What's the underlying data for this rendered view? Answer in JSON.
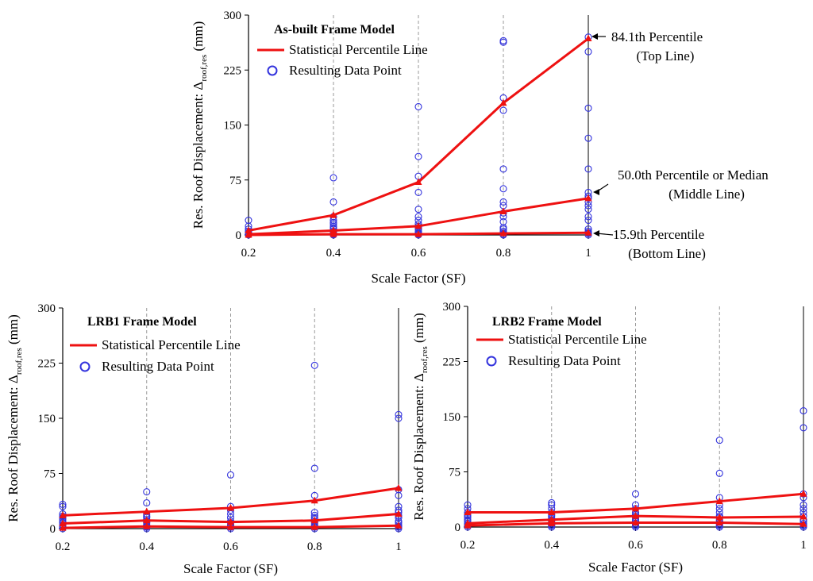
{
  "chart_data": [
    {
      "type": "scatter",
      "id": "asbuilt",
      "title": "As-built Frame Model",
      "xlabel": "Scale Factor (SF)",
      "ylabel": "Res. Roof Displacement: Δ",
      "ylabel_sub": "roof,res",
      "ylabel_unit": " (mm)",
      "xlim": [
        0.2,
        1.0
      ],
      "ylim": [
        0,
        300
      ],
      "xticks": [
        0.2,
        0.4,
        0.6,
        0.8,
        1.0
      ],
      "xtick_labels": [
        "0.2",
        "0.4",
        "0.6",
        "0.8",
        "1"
      ],
      "yticks": [
        0,
        75,
        150,
        225,
        300
      ],
      "ytick_labels": [
        "0",
        "75",
        "150",
        "225",
        "300"
      ],
      "legend": [
        "Statistical Percentile Line",
        "Resulting Data Point"
      ],
      "percentile_lines": [
        {
          "name": "84.1th Percentile",
          "x": [
            0.2,
            0.4,
            0.6,
            0.8,
            1.0
          ],
          "y": [
            6,
            27,
            72,
            180,
            268
          ]
        },
        {
          "name": "50.0th Percentile",
          "x": [
            0.2,
            0.4,
            0.6,
            0.8,
            1.0
          ],
          "y": [
            1,
            6,
            12,
            32,
            50
          ]
        },
        {
          "name": "15.9th Percentile",
          "x": [
            0.2,
            0.4,
            0.6,
            0.8,
            1.0
          ],
          "y": [
            0,
            1,
            1,
            2,
            3
          ]
        }
      ],
      "points": [
        {
          "x": 0.2,
          "y": [
            0,
            1,
            2,
            3,
            5,
            8,
            12,
            20
          ]
        },
        {
          "x": 0.4,
          "y": [
            0,
            1,
            2,
            3,
            5,
            8,
            10,
            12,
            15,
            17,
            20,
            25,
            45,
            78
          ]
        },
        {
          "x": 0.6,
          "y": [
            0,
            1,
            2,
            3,
            5,
            8,
            10,
            12,
            15,
            20,
            25,
            35,
            58,
            80,
            107,
            175
          ]
        },
        {
          "x": 0.8,
          "y": [
            0,
            1,
            3,
            5,
            8,
            10,
            18,
            25,
            30,
            40,
            45,
            63,
            90,
            170,
            187,
            263,
            265
          ]
        },
        {
          "x": 1.0,
          "y": [
            0,
            2,
            3,
            5,
            8,
            20,
            25,
            35,
            40,
            45,
            50,
            53,
            58,
            90,
            132,
            173,
            250,
            270
          ]
        }
      ],
      "annotations": [
        {
          "line1": "84.1th Percentile",
          "line2": "(Top Line)"
        },
        {
          "line1": "50.0th Percentile or Median",
          "line2": "(Middle Line)"
        },
        {
          "line1": "15.9th Percentile",
          "line2": "(Bottom Line)"
        }
      ]
    },
    {
      "type": "scatter",
      "id": "lrb1",
      "title": "LRB1 Frame Model",
      "xlabel": "Scale Factor (SF)",
      "ylabel": "Res. Roof Displacement: Δ",
      "ylabel_sub": "roof,res",
      "ylabel_unit": " (mm)",
      "xlim": [
        0.2,
        1.0
      ],
      "ylim": [
        0,
        300
      ],
      "xticks": [
        0.2,
        0.4,
        0.6,
        0.8,
        1.0
      ],
      "xtick_labels": [
        "0.2",
        "0.4",
        "0.6",
        "0.8",
        "1"
      ],
      "yticks": [
        0,
        75,
        150,
        225,
        300
      ],
      "ytick_labels": [
        "0",
        "75",
        "150",
        "225",
        "300"
      ],
      "legend": [
        "Statistical Percentile Line",
        "Resulting Data Point"
      ],
      "percentile_lines": [
        {
          "name": "84.1th Percentile",
          "x": [
            0.2,
            0.4,
            0.6,
            0.8,
            1.0
          ],
          "y": [
            18,
            23,
            28,
            38,
            55
          ]
        },
        {
          "name": "50.0th Percentile",
          "x": [
            0.2,
            0.4,
            0.6,
            0.8,
            1.0
          ],
          "y": [
            7,
            11,
            9,
            11,
            20
          ]
        },
        {
          "name": "15.9th Percentile",
          "x": [
            0.2,
            0.4,
            0.6,
            0.8,
            1.0
          ],
          "y": [
            1,
            3,
            2,
            2,
            4
          ]
        }
      ],
      "points": [
        {
          "x": 0.2,
          "y": [
            0,
            2,
            3,
            5,
            8,
            10,
            13,
            15,
            17,
            20,
            30,
            33
          ]
        },
        {
          "x": 0.4,
          "y": [
            0,
            2,
            3,
            5,
            8,
            10,
            12,
            15,
            17,
            20,
            35,
            50
          ]
        },
        {
          "x": 0.6,
          "y": [
            0,
            2,
            3,
            5,
            8,
            10,
            15,
            20,
            25,
            30,
            73
          ]
        },
        {
          "x": 0.8,
          "y": [
            0,
            2,
            3,
            5,
            8,
            10,
            13,
            15,
            18,
            22,
            45,
            82,
            222
          ]
        },
        {
          "x": 1.0,
          "y": [
            0,
            2,
            3,
            5,
            8,
            10,
            15,
            18,
            22,
            25,
            30,
            45,
            53,
            155,
            150
          ]
        }
      ]
    },
    {
      "type": "scatter",
      "id": "lrb2",
      "title": "LRB2 Frame Model",
      "xlabel": "Scale Factor (SF)",
      "ylabel": "Res. Roof Displacement: Δ",
      "ylabel_sub": "roof,res",
      "ylabel_unit": " (mm)",
      "xlim": [
        0.2,
        1.0
      ],
      "ylim": [
        0,
        300
      ],
      "xticks": [
        0.2,
        0.4,
        0.6,
        0.8,
        1.0
      ],
      "xtick_labels": [
        "0.2",
        "0.4",
        "0.6",
        "0.8",
        "1"
      ],
      "yticks": [
        0,
        75,
        150,
        225,
        300
      ],
      "ytick_labels": [
        "0",
        "75",
        "150",
        "225",
        "300"
      ],
      "legend": [
        "Statistical Percentile Line",
        "Resulting Data Point"
      ],
      "percentile_lines": [
        {
          "name": "84.1th Percentile",
          "x": [
            0.2,
            0.4,
            0.6,
            0.8,
            1.0
          ],
          "y": [
            20,
            20,
            25,
            35,
            45
          ]
        },
        {
          "name": "50.0th Percentile",
          "x": [
            0.2,
            0.4,
            0.6,
            0.8,
            1.0
          ],
          "y": [
            5,
            10,
            15,
            13,
            14
          ]
        },
        {
          "name": "15.9th Percentile",
          "x": [
            0.2,
            0.4,
            0.6,
            0.8,
            1.0
          ],
          "y": [
            2,
            5,
            6,
            6,
            4
          ]
        }
      ],
      "points": [
        {
          "x": 0.2,
          "y": [
            0,
            2,
            3,
            5,
            8,
            10,
            13,
            15,
            17,
            20,
            25,
            30
          ]
        },
        {
          "x": 0.4,
          "y": [
            0,
            2,
            3,
            5,
            8,
            10,
            12,
            15,
            17,
            20,
            25,
            30,
            33
          ]
        },
        {
          "x": 0.6,
          "y": [
            0,
            2,
            3,
            5,
            8,
            10,
            13,
            15,
            17,
            20,
            25,
            30,
            45
          ]
        },
        {
          "x": 0.8,
          "y": [
            0,
            2,
            3,
            5,
            8,
            10,
            13,
            15,
            20,
            25,
            30,
            40,
            73,
            118
          ]
        },
        {
          "x": 1.0,
          "y": [
            0,
            2,
            3,
            5,
            8,
            10,
            15,
            20,
            25,
            30,
            40,
            45,
            135,
            158
          ]
        }
      ]
    }
  ],
  "colors": {
    "line": "#ee1111",
    "marker_line": "#ee1111",
    "point": "#3333dd",
    "guide": "#999999",
    "axis": "#000000"
  }
}
